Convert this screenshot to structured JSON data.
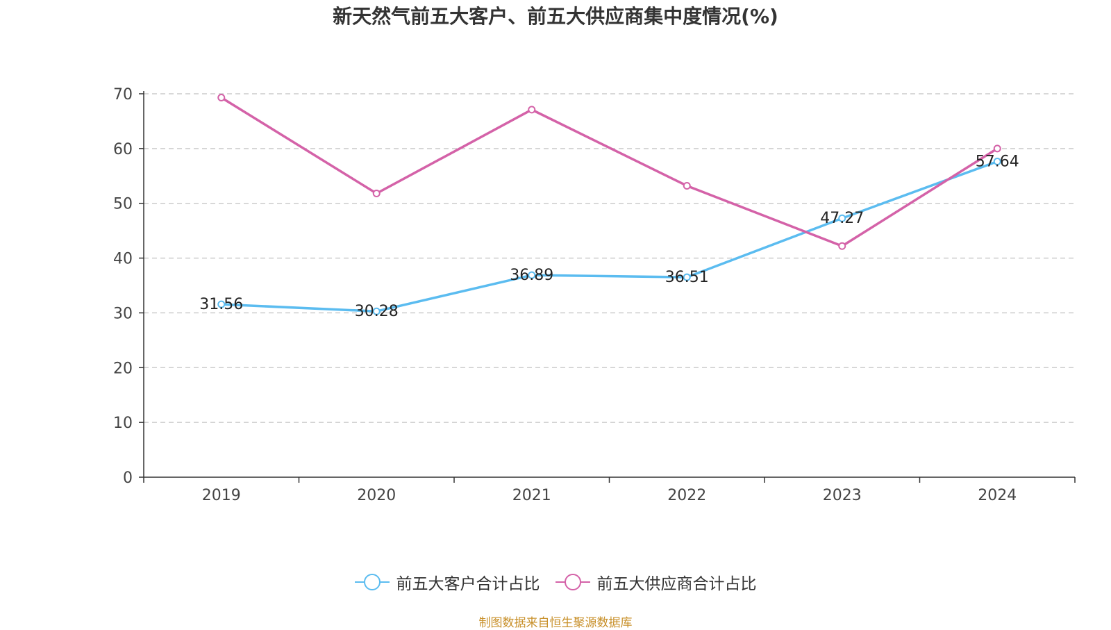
{
  "chart_data": {
    "type": "line",
    "title": "新天然气前五大客户、前五大供应商集中度情况(%)",
    "categories": [
      "2019",
      "2020",
      "2021",
      "2022",
      "2023",
      "2024"
    ],
    "ylim": [
      0,
      70
    ],
    "yticks": [
      "0",
      "10",
      "20",
      "30",
      "40",
      "50",
      "60",
      "70"
    ],
    "grid": true,
    "legend_position": "bottom",
    "series": [
      {
        "name": "前五大客户合计占比",
        "color": "#5bbcf0",
        "values": [
          31.56,
          30.28,
          36.89,
          36.51,
          47.27,
          57.64
        ],
        "labels": [
          "31.56",
          "30.28",
          "36.89",
          "36.51",
          "47.27",
          "57.64"
        ]
      },
      {
        "name": "前五大供应商合计占比",
        "color": "#d462a8",
        "values": [
          69.3,
          51.8,
          67.1,
          53.2,
          42.2,
          60.0
        ]
      }
    ]
  },
  "footer": {
    "source": "制图数据来自恒生聚源数据库"
  }
}
